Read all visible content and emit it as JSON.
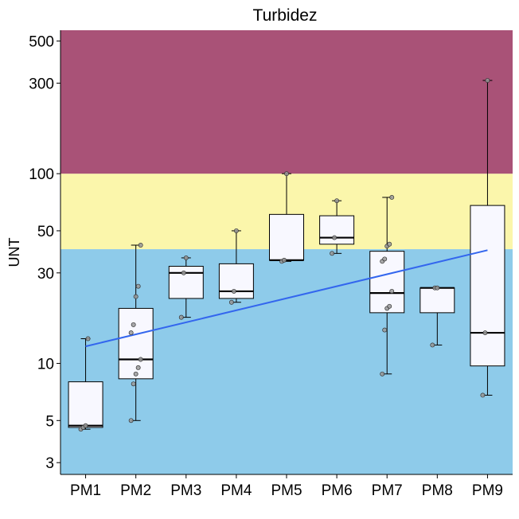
{
  "chart_data": {
    "type": "box",
    "title": "Turbidez",
    "xlabel": "",
    "ylabel": "UNT",
    "y_scale": "log10",
    "ylim": [
      2.6,
      570
    ],
    "yticks": [
      3,
      5,
      10,
      30,
      50,
      100,
      300,
      500
    ],
    "grid": false,
    "legend": "none",
    "categories": [
      "PM1",
      "PM2",
      "PM3",
      "PM4",
      "PM5",
      "PM6",
      "PM7",
      "PM8",
      "PM9"
    ],
    "bands": [
      {
        "from": 2.6,
        "to": 40,
        "color": "#8ecbea"
      },
      {
        "from": 40,
        "to": 100,
        "color": "#fbf6ab"
      },
      {
        "from": 100,
        "to": 570,
        "color": "#a95277"
      }
    ],
    "boxes": [
      {
        "category": "PM1",
        "min": 4.5,
        "q1": 4.6,
        "median": 4.7,
        "q3": 8.0,
        "max": 13.5
      },
      {
        "category": "PM2",
        "min": 5.0,
        "q1": 8.3,
        "median": 10.5,
        "q3": 19.5,
        "max": 42
      },
      {
        "category": "PM3",
        "min": 17.5,
        "q1": 22,
        "median": 30,
        "q3": 32.5,
        "max": 36
      },
      {
        "category": "PM4",
        "min": 21,
        "q1": 22,
        "median": 24,
        "q3": 33.5,
        "max": 50
      },
      {
        "category": "PM5",
        "min": 34.5,
        "q1": 35,
        "median": 35,
        "q3": 61,
        "max": 100
      },
      {
        "category": "PM6",
        "min": 38,
        "q1": 42.5,
        "median": 46,
        "q3": 60,
        "max": 72
      },
      {
        "category": "PM7",
        "min": 8.8,
        "q1": 18.5,
        "median": 23.5,
        "q3": 39,
        "max": 75
      },
      {
        "category": "PM8",
        "min": 12.5,
        "q1": 18.5,
        "median": 25,
        "q3": 25,
        "max": 25
      },
      {
        "category": "PM9",
        "min": 6.8,
        "q1": 9.7,
        "median": 14.5,
        "q3": 68,
        "max": 310
      }
    ],
    "points": [
      {
        "category": "PM1",
        "values": [
          4.5,
          4.6,
          4.7,
          13.5
        ]
      },
      {
        "category": "PM2",
        "values": [
          5.0,
          7.8,
          8.8,
          9.5,
          10.5,
          14.5,
          16,
          22.5,
          25.5,
          42
        ]
      },
      {
        "category": "PM3",
        "values": [
          17.5,
          30,
          36
        ]
      },
      {
        "category": "PM4",
        "values": [
          21,
          24,
          50
        ]
      },
      {
        "category": "PM5",
        "values": [
          34.5,
          35,
          100
        ]
      },
      {
        "category": "PM6",
        "values": [
          38,
          46,
          72
        ]
      },
      {
        "category": "PM7",
        "values": [
          8.8,
          15,
          19.5,
          20,
          24,
          34.5,
          35.5,
          41.5,
          42.5,
          75
        ]
      },
      {
        "category": "PM8",
        "values": [
          12.5,
          25,
          25
        ]
      },
      {
        "category": "PM9",
        "values": [
          6.8,
          14.5,
          310
        ]
      }
    ],
    "trend_line": {
      "color": "#3366ee",
      "from": {
        "category": "PM1",
        "y": 12.3
      },
      "to": {
        "category": "PM9",
        "y": 39.5
      }
    },
    "colors": {
      "box_fill": "#f8f8ff",
      "point_fill": "#9b9b9b"
    }
  }
}
